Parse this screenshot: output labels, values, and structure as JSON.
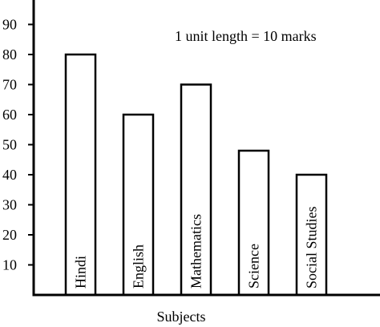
{
  "chart_data": {
    "type": "bar",
    "title": "",
    "xlabel": "Subjects",
    "ylabel": "",
    "annotation": "1 unit length = 10 marks",
    "categories": [
      "Hindi",
      "English",
      "Mathematics",
      "Science",
      "Social Studies"
    ],
    "values": [
      80,
      60,
      70,
      48,
      40
    ],
    "yticks": [
      10,
      20,
      30,
      40,
      50,
      60,
      70,
      80,
      90
    ],
    "ylim": [
      0,
      100
    ],
    "grid": false,
    "legend": "none",
    "bar_fill": "#ffffff",
    "bar_stroke": "#000000"
  }
}
